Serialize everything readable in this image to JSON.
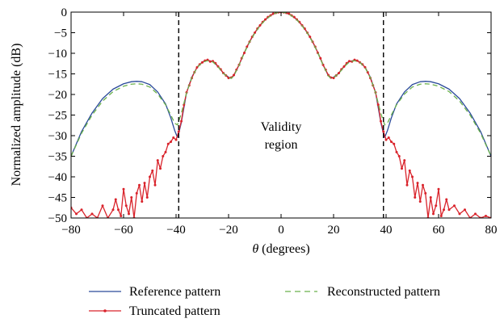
{
  "chart_data": {
    "type": "line",
    "title": "",
    "xlabel_symbol": "θ",
    "xlabel_rest": " (degrees)",
    "ylabel": "Normalized amplitude (dB)",
    "xlim": [
      -80,
      80
    ],
    "ylim": [
      -50,
      0
    ],
    "xticks": [
      -80,
      -60,
      -40,
      -20,
      0,
      20,
      40,
      60,
      80
    ],
    "yticks": [
      0,
      -5,
      -10,
      -15,
      -20,
      -25,
      -30,
      -35,
      -40,
      -45,
      -50
    ],
    "xtick_labels": [
      "−80",
      "−60",
      "−40",
      "−20",
      "0",
      "20",
      "40",
      "60",
      "80"
    ],
    "ytick_labels": [
      "0",
      "−5",
      "−10",
      "−15",
      "−20",
      "−25",
      "−30",
      "−35",
      "−40",
      "−45",
      "−50"
    ],
    "grid": false,
    "legend_position": "bottom",
    "validity_lines_x": [
      -39,
      39
    ],
    "annotation": {
      "line1": "Validity",
      "line2": "region",
      "x": 0,
      "y": -31
    },
    "series": [
      {
        "name": "Reference pattern",
        "color": "#2b4a9a",
        "style": "solid",
        "x": [
          -80,
          -76,
          -72,
          -68,
          -64,
          -60,
          -57,
          -55,
          -53,
          -50,
          -47,
          -44,
          -42,
          -40.5,
          -39.5,
          -39,
          -38,
          -36,
          -34,
          -32,
          -30,
          -28,
          -26,
          -24,
          -22,
          -20,
          -19,
          -18,
          -16,
          -14,
          -12,
          -10,
          -8,
          -6,
          -4,
          -2,
          0,
          2,
          4,
          6,
          8,
          10,
          12,
          14,
          16,
          18,
          19,
          20,
          22,
          24,
          26,
          28,
          30,
          32,
          34,
          36,
          38,
          39,
          39.5,
          40.5,
          42,
          44,
          47,
          50,
          53,
          55,
          57,
          60,
          64,
          68,
          72,
          76,
          80
        ],
        "y": [
          -35,
          -29,
          -24.5,
          -21,
          -18.7,
          -17.4,
          -16.9,
          -16.8,
          -16.9,
          -17.6,
          -19.4,
          -22.3,
          -25.7,
          -28.8,
          -30.4,
          -29.5,
          -26.8,
          -19.5,
          -15.8,
          -13.4,
          -12.1,
          -11.7,
          -12,
          -13.2,
          -14.8,
          -15.8,
          -16,
          -15.4,
          -12.8,
          -9.8,
          -7.2,
          -5,
          -3.2,
          -1.8,
          -0.8,
          -0.2,
          0,
          -0.2,
          -0.8,
          -1.8,
          -3.2,
          -5,
          -7.2,
          -9.8,
          -12.8,
          -15.4,
          -16,
          -15.8,
          -14.8,
          -13.2,
          -12,
          -11.7,
          -12.1,
          -13.4,
          -15.8,
          -19.5,
          -26.8,
          -29.5,
          -30.4,
          -28.8,
          -25.7,
          -22.3,
          -19.4,
          -17.6,
          -16.9,
          -16.8,
          -16.9,
          -17.4,
          -18.7,
          -21,
          -24.5,
          -29,
          -35
        ]
      },
      {
        "name": "Reconstructed pattern",
        "color": "#6ab04c",
        "style": "dashed",
        "x": [
          -80,
          -76,
          -72,
          -68,
          -64,
          -60,
          -57,
          -55,
          -53,
          -50,
          -47,
          -44,
          -42,
          -40.5,
          -39.5,
          -39,
          -38,
          -36,
          -34,
          -32,
          -30,
          -28,
          -26,
          -24,
          -22,
          -20,
          -19,
          -18,
          -16,
          -14,
          -12,
          -10,
          -8,
          -6,
          -4,
          -2,
          0,
          2,
          4,
          6,
          8,
          10,
          12,
          14,
          16,
          18,
          19,
          20,
          22,
          24,
          26,
          28,
          30,
          32,
          34,
          36,
          38,
          39,
          39.5,
          40.5,
          42,
          44,
          47,
          50,
          53,
          55,
          57,
          60,
          64,
          68,
          72,
          76,
          80
        ],
        "y": [
          -35,
          -29.4,
          -25,
          -21.6,
          -19.3,
          -18,
          -17.5,
          -17.4,
          -17.5,
          -18.2,
          -19.9,
          -22.5,
          -25,
          -27,
          -27.4,
          -26.5,
          -24.6,
          -19.6,
          -15.9,
          -13.5,
          -12.2,
          -11.8,
          -12.1,
          -13.3,
          -14.9,
          -15.9,
          -16.1,
          -15.5,
          -12.9,
          -9.9,
          -7.3,
          -5.1,
          -3.3,
          -1.9,
          -0.9,
          -0.2,
          0,
          -0.2,
          -0.9,
          -1.9,
          -3.3,
          -5.1,
          -7.3,
          -9.9,
          -12.9,
          -15.5,
          -16.1,
          -15.9,
          -14.9,
          -13.3,
          -12.1,
          -11.8,
          -12.2,
          -13.5,
          -15.9,
          -19.6,
          -24.6,
          -26.5,
          -27.4,
          -27,
          -25,
          -22.5,
          -19.9,
          -18.2,
          -17.5,
          -17.4,
          -17.5,
          -18,
          -19.3,
          -21.6,
          -25,
          -29.4,
          -35
        ]
      },
      {
        "name": "Truncated pattern",
        "color": "#d9232b",
        "style": "solid-markers",
        "x": [
          -80,
          -78,
          -76,
          -74,
          -72,
          -70,
          -68,
          -66,
          -64,
          -63,
          -62,
          -61,
          -60,
          -59,
          -58,
          -57,
          -56,
          -55,
          -54,
          -53,
          -52,
          -51,
          -50,
          -49,
          -48,
          -47,
          -46,
          -45,
          -44,
          -43,
          -42,
          -41,
          -40,
          -39,
          -38,
          -37,
          -36,
          -35,
          -34,
          -33,
          -32,
          -31,
          -30,
          -29,
          -28,
          -27,
          -26,
          -25,
          -24,
          -23,
          -22,
          -21,
          -20,
          -19,
          -18,
          -17,
          -16,
          -15,
          -14,
          -13,
          -12,
          -11,
          -10,
          -9,
          -8,
          -7,
          -6,
          -5,
          -4,
          -3,
          -2,
          -1,
          0,
          1,
          2,
          3,
          4,
          5,
          6,
          7,
          8,
          9,
          10,
          11,
          12,
          13,
          14,
          15,
          16,
          17,
          18,
          19,
          20,
          21,
          22,
          23,
          24,
          25,
          26,
          27,
          28,
          29,
          30,
          31,
          32,
          33,
          34,
          35,
          36,
          37,
          38,
          39,
          40,
          41,
          42,
          43,
          44,
          45,
          46,
          47,
          48,
          49,
          50,
          51,
          52,
          53,
          54,
          55,
          56,
          57,
          58,
          59,
          60,
          61,
          62,
          63,
          64,
          66,
          68,
          70,
          72,
          74,
          76,
          78,
          80
        ],
        "y": [
          -47.5,
          -49,
          -48,
          -50,
          -49,
          -50,
          -47,
          -50,
          -48,
          -45.5,
          -48,
          -49.5,
          -43,
          -47,
          -49,
          -45,
          -50,
          -44,
          -42,
          -46,
          -41.5,
          -45,
          -40,
          -38.5,
          -42,
          -36,
          -38,
          -35,
          -34,
          -32,
          -31.5,
          -30.5,
          -31,
          -29,
          -26.5,
          -22.5,
          -19.5,
          -17.8,
          -16,
          -14.6,
          -13.4,
          -12.7,
          -12.2,
          -11.8,
          -11.6,
          -12,
          -11.9,
          -12.4,
          -13.2,
          -13.9,
          -14.8,
          -15.4,
          -16,
          -15.9,
          -15.3,
          -14,
          -12.8,
          -11.2,
          -9.9,
          -8.4,
          -7.2,
          -6,
          -5,
          -4,
          -3.2,
          -2.4,
          -1.8,
          -1.2,
          -0.8,
          -0.4,
          -0.2,
          -0.05,
          0,
          -0.05,
          -0.2,
          -0.4,
          -0.8,
          -1.2,
          -1.8,
          -2.4,
          -3.2,
          -4,
          -5,
          -6,
          -7.2,
          -8.4,
          -9.9,
          -11.2,
          -12.8,
          -14,
          -15.3,
          -15.9,
          -16,
          -15.4,
          -14.8,
          -13.9,
          -13.2,
          -12.4,
          -11.9,
          -12,
          -11.6,
          -11.8,
          -12.2,
          -12.7,
          -13.4,
          -14.6,
          -16,
          -17.8,
          -19.5,
          -22.5,
          -26.5,
          -29,
          -31,
          -30.5,
          -31.5,
          -32,
          -34,
          -35,
          -38,
          -36,
          -42,
          -38.5,
          -40,
          -45,
          -41.5,
          -46,
          -42,
          -44,
          -50,
          -45,
          -49,
          -47,
          -43,
          -49.5,
          -48,
          -45.5,
          -48,
          -47,
          -49,
          -48,
          -50,
          -49,
          -50,
          -49.5,
          -50
        ]
      }
    ]
  }
}
